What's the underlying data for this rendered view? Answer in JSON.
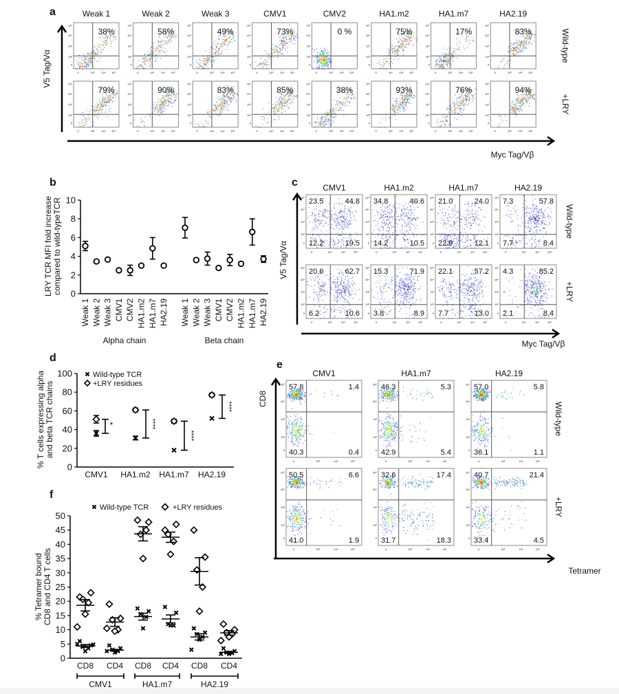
{
  "panel_labels": {
    "a": "a",
    "b": "b",
    "c": "c",
    "d": "d",
    "e": "e",
    "f": "f"
  },
  "flow_ticks": {
    "x": [
      "0",
      "10³",
      "10⁴",
      "10⁵"
    ],
    "y": [
      "10⁵",
      "10⁴",
      "10³",
      "10²",
      "0"
    ]
  },
  "panel_a": {
    "y_axis": "V5 Tag/Vα",
    "x_axis": "Myc Tag/Vβ",
    "columns": [
      "Weak 1",
      "Weak 2",
      "Weak 3",
      "CMV1",
      "CMV2",
      "HA1.m2",
      "HA1.m7",
      "HA2.19"
    ],
    "rows": [
      "Wild-type",
      "+LRY"
    ],
    "percent": [
      [
        "38%",
        "58%",
        "49%",
        "73%",
        "0 %",
        "75%",
        "17%",
        "83%"
      ],
      [
        "79%",
        "90%",
        "83%",
        "85%",
        "38%",
        "93%",
        "76%",
        "94%"
      ]
    ]
  },
  "panel_c": {
    "y_axis": "V5 Tag/Vα",
    "x_axis": "Myc Tag/Vβ",
    "columns": [
      "CMV1",
      "HA1.m2",
      "HA1.m7",
      "HA2.19"
    ],
    "rows": [
      "Wild-type",
      "+LRY"
    ],
    "quadrant_order": [
      "upper-left",
      "upper-right",
      "lower-left",
      "lower-right"
    ],
    "quadrants": [
      [
        [
          "23.5",
          "44.8",
          "12.2",
          "19.5"
        ],
        [
          "34.8",
          "40.6",
          "14.2",
          "10.5"
        ],
        [
          "21.0",
          "24.0",
          "22.9",
          "12.1"
        ],
        [
          "7.3",
          "57.8",
          "7.7",
          "8.4"
        ]
      ],
      [
        [
          "20.6",
          "62.7",
          "6.2",
          "10.6"
        ],
        [
          "15.3",
          "71.9",
          "3.8",
          "8.9"
        ],
        [
          "22.1",
          "57.2",
          "7.7",
          "13.0"
        ],
        [
          "4.3",
          "85.2",
          "2.1",
          "8.4"
        ]
      ]
    ]
  },
  "panel_e": {
    "y_axis": "CD8",
    "x_axis": "Tetramer",
    "columns": [
      "CMV1",
      "HA1.m7",
      "HA2.19"
    ],
    "rows": [
      "Wild-type",
      "+LRY"
    ],
    "quadrant_order": [
      "upper-left",
      "upper-right",
      "lower-left",
      "lower-right"
    ],
    "quadrants": [
      [
        [
          "57.8",
          "1.4",
          "40.3",
          "0.4"
        ],
        [
          "46.3",
          "5.3",
          "42.9",
          "5.4"
        ],
        [
          "57.0",
          "5.8",
          "36.1",
          "1.1"
        ]
      ],
      [
        [
          "50.5",
          "6.6",
          "41.0",
          "1.9"
        ],
        [
          "32.6",
          "17.4",
          "31.7",
          "18.3"
        ],
        [
          "40.7",
          "21.4",
          "33.4",
          "4.5"
        ]
      ]
    ]
  },
  "chart_data": [
    {
      "panel": "b",
      "type": "scatter",
      "ylabel": [
        "LRY TCR MFI fold increase",
        "compared to wild-typeTCR"
      ],
      "ylim": [
        0,
        10
      ],
      "yticks": [
        "0",
        "2",
        "4",
        "6",
        "8",
        "10"
      ],
      "groups": [
        {
          "name": "Alpha chain",
          "categories": [
            "Weak 1",
            "Weak 2",
            "Weak 3",
            "CMV1",
            "CMV2",
            "HA1.m2",
            "HA1.m7",
            "HA2.19"
          ],
          "values": [
            5.1,
            3.45,
            3.65,
            2.5,
            2.5,
            3.0,
            4.85,
            3.0
          ],
          "errors": [
            0.5,
            0.15,
            0.1,
            0.1,
            0.55,
            0.1,
            1.15,
            0.1
          ]
        },
        {
          "name": "Beta chain",
          "categories": [
            "Weak 1",
            "Weak 2",
            "Weak 3",
            "CMV1",
            "CMV2",
            "HA1.m2",
            "HA1.m7",
            "HA2.19"
          ],
          "values": [
            7.05,
            3.6,
            3.75,
            2.75,
            3.6,
            3.2,
            6.6,
            3.7
          ],
          "errors": [
            1.1,
            0.1,
            0.7,
            0.15,
            0.6,
            0.1,
            1.4,
            0.35
          ]
        }
      ],
      "grid": false
    },
    {
      "panel": "d",
      "type": "scatter",
      "ylabel": [
        "% T cells expressing alpha",
        "and beta TCR chains"
      ],
      "ylim": [
        0,
        100
      ],
      "yticks": [
        "0",
        "20",
        "40",
        "60",
        "80",
        "100"
      ],
      "categories": [
        "CMV1",
        "HA1.m2",
        "HA1.m7",
        "HA2.19"
      ],
      "series": [
        {
          "name": "Wild-type TCR",
          "marker": "x",
          "values": [
            36,
            31,
            18,
            52
          ],
          "errors": [
            3,
            2,
            0,
            0
          ]
        },
        {
          "name": "+LRY residues",
          "marker": "diamond",
          "values": [
            51,
            61,
            49,
            77
          ],
          "errors": [
            4,
            2,
            2,
            2
          ]
        }
      ],
      "significance": [
        "*",
        "****",
        "****",
        "****"
      ],
      "legend": "top-left",
      "grid": false
    },
    {
      "panel": "f",
      "type": "scatter",
      "ylabel": [
        "% Tetramer bound",
        "CD8 and CD4 T cells"
      ],
      "ylim": [
        0,
        50
      ],
      "yticks": [
        "0",
        "5",
        "10",
        "15",
        "20",
        "25",
        "30",
        "35",
        "40",
        "45",
        "50"
      ],
      "categories": [
        "CD8",
        "CD4",
        "CD8",
        "CD4",
        "CD8",
        "CD4"
      ],
      "groups": [
        "CMV1",
        "HA1.m7",
        "HA2.19"
      ],
      "series": [
        {
          "name": "Wild-type TCR",
          "marker": "x",
          "points": [
            [
              6,
              4.5,
              4,
              3.5,
              2.5,
              5,
              4.8
            ],
            [
              4.5,
              3.5,
              3,
              2.5,
              2,
              2.5
            ],
            [
              17.5,
              16.5,
              15.5,
              14.5,
              10.5
            ],
            [
              18,
              16,
              12,
              11.5,
              11.5
            ],
            [
              10.5,
              9,
              8.5,
              7.5,
              6.5,
              3
            ],
            [
              3.5,
              2.5,
              2,
              1.8,
              1.5,
              1.5
            ]
          ],
          "mean": [
            4.3,
            2.8,
            14.6,
            13.8,
            7.5,
            2.1
          ],
          "sem": [
            0.5,
            0.3,
            1.2,
            1.4,
            1.1,
            0.3
          ]
        },
        {
          "name": "+LRY residues",
          "marker": "diamond",
          "points": [
            [
              21.5,
              23,
              20.7,
              19.5,
              15.5,
              11
            ],
            [
              19,
              14,
              13.5,
              10,
              9.5,
              10.5
            ],
            [
              48.5,
              47.8,
              43.5,
              45,
              35
            ],
            [
              45,
              47,
              43.5,
              41,
              36.5
            ],
            [
              45,
              35.5,
              31,
              25,
              16.5
            ],
            [
              12,
              10,
              9,
              8.5,
              7.5,
              6.2
            ]
          ],
          "mean": [
            18.6,
            12.7,
            43.7,
            42.5,
            30.5,
            8.9
          ],
          "sem": [
            2.0,
            1.5,
            2.5,
            1.8,
            4.8,
            0.8
          ]
        }
      ],
      "legend": "top",
      "grid": false
    }
  ]
}
